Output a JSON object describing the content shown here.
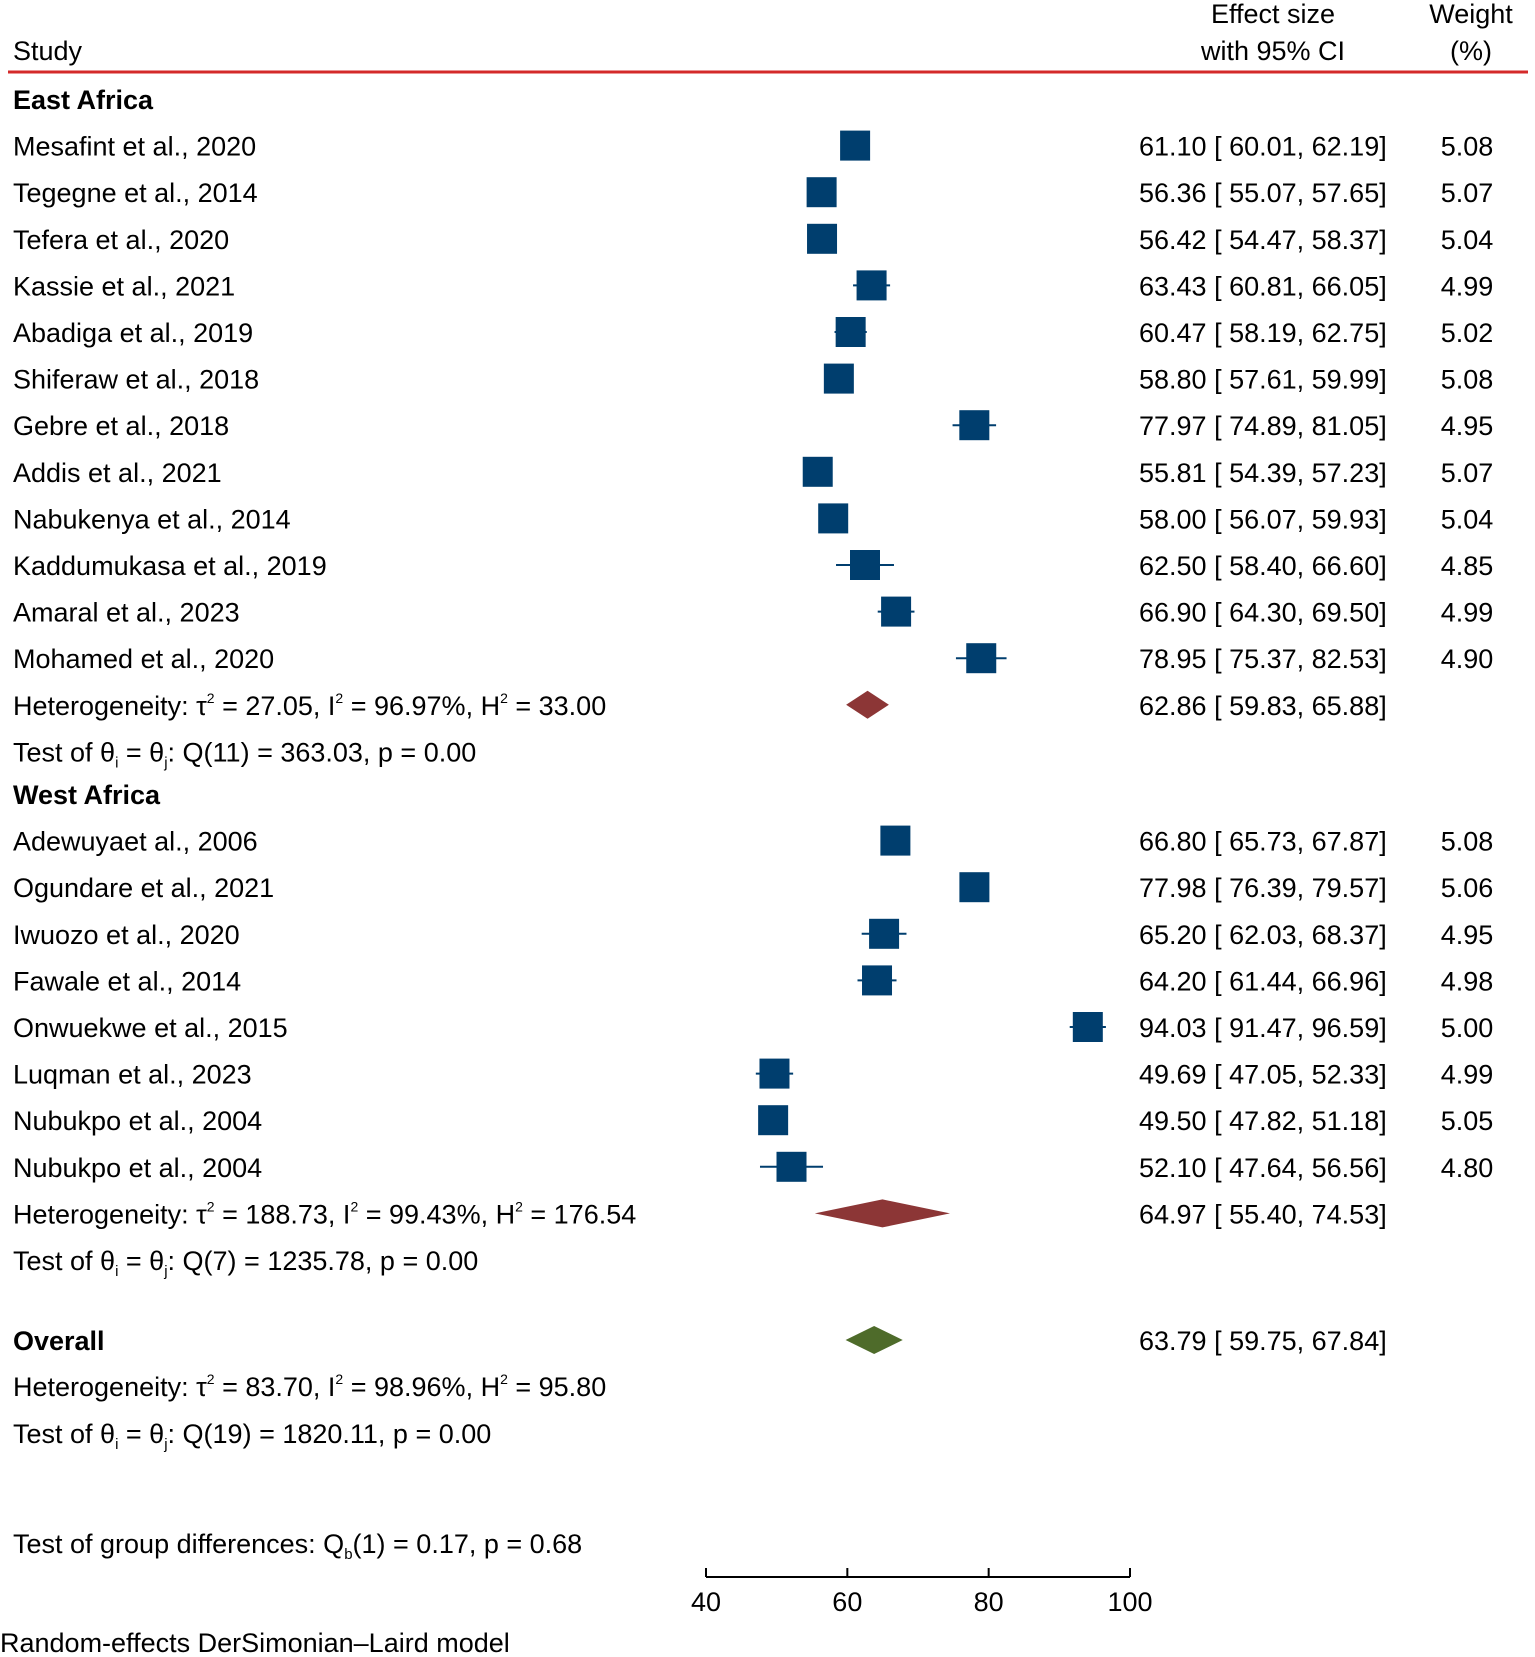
{
  "header": {
    "study": "Study",
    "effect_line1": "Effect size",
    "effect_line2": "with 95% CI",
    "weight_line1": "Weight",
    "weight_line2": "(%)"
  },
  "colors": {
    "header_rule": "#d42a2a",
    "study_marker": "#003e6e",
    "subgroup_diamond": "#8c3636",
    "overall_diamond": "#4e6b2a"
  },
  "chart_data": {
    "type": "forest",
    "xlim": [
      40,
      100
    ],
    "xticks": [
      40,
      60,
      80,
      100
    ],
    "groups": [
      {
        "name": "East Africa",
        "studies": [
          {
            "label": "Mesafint et al., 2020",
            "es": 61.1,
            "lo": 60.01,
            "hi": 62.19,
            "weight": "5.08",
            "text": "61.10 [ 60.01,  62.19]"
          },
          {
            "label": "Tegegne et al., 2014",
            "es": 56.36,
            "lo": 55.07,
            "hi": 57.65,
            "weight": "5.07",
            "text": "56.36 [ 55.07,  57.65]"
          },
          {
            "label": "Tefera et al., 2020",
            "es": 56.42,
            "lo": 54.47,
            "hi": 58.37,
            "weight": "5.04",
            "text": "56.42 [ 54.47,  58.37]"
          },
          {
            "label": "Kassie et al., 2021",
            "es": 63.43,
            "lo": 60.81,
            "hi": 66.05,
            "weight": "4.99",
            "text": "63.43 [ 60.81,  66.05]"
          },
          {
            "label": "Abadiga et al., 2019",
            "es": 60.47,
            "lo": 58.19,
            "hi": 62.75,
            "weight": "5.02",
            "text": "60.47 [ 58.19,  62.75]"
          },
          {
            "label": "Shiferaw et al., 2018",
            "es": 58.8,
            "lo": 57.61,
            "hi": 59.99,
            "weight": "5.08",
            "text": "58.80 [ 57.61,  59.99]"
          },
          {
            "label": "Gebre et al., 2018",
            "es": 77.97,
            "lo": 74.89,
            "hi": 81.05,
            "weight": "4.95",
            "text": "77.97 [ 74.89,  81.05]"
          },
          {
            "label": "Addis et al., 2021",
            "es": 55.81,
            "lo": 54.39,
            "hi": 57.23,
            "weight": "5.07",
            "text": "55.81 [ 54.39,  57.23]"
          },
          {
            "label": "Nabukenya et al., 2014",
            "es": 58.0,
            "lo": 56.07,
            "hi": 59.93,
            "weight": "5.04",
            "text": "58.00 [ 56.07,  59.93]"
          },
          {
            "label": "Kaddumukasa et al., 2019",
            "es": 62.5,
            "lo": 58.4,
            "hi": 66.6,
            "weight": "4.85",
            "text": "62.50 [ 58.40,  66.60]"
          },
          {
            "label": "Amaral et al., 2023",
            "es": 66.9,
            "lo": 64.3,
            "hi": 69.5,
            "weight": "4.99",
            "text": "66.90 [ 64.30,  69.50]"
          },
          {
            "label": "Mohamed et al., 2020",
            "es": 78.95,
            "lo": 75.37,
            "hi": 82.53,
            "weight": "4.90",
            "text": "78.95 [ 75.37,  82.53]"
          }
        ],
        "pooled": {
          "es": 62.86,
          "lo": 59.83,
          "hi": 65.88,
          "text": "62.86 [ 59.83,  65.88]"
        },
        "heterogeneity": {
          "prefix": "Heterogeneity: τ",
          "tau2": " = 27.05, I",
          "i2": " = 96.97%, H",
          "h2": " = 33.00"
        },
        "test": {
          "prefix": "Test of θ",
          "i": "i",
          "mid": " = θ",
          "j": "j",
          "rest": ": Q(11) = 363.03, p = 0.00"
        }
      },
      {
        "name": "West Africa",
        "studies": [
          {
            "label": "Adewuyaet al., 2006",
            "es": 66.8,
            "lo": 65.73,
            "hi": 67.87,
            "weight": "5.08",
            "text": "66.80 [ 65.73,  67.87]"
          },
          {
            "label": "Ogundare et al., 2021",
            "es": 77.98,
            "lo": 76.39,
            "hi": 79.57,
            "weight": "5.06",
            "text": "77.98 [ 76.39,  79.57]"
          },
          {
            "label": "Iwuozo et al., 2020",
            "es": 65.2,
            "lo": 62.03,
            "hi": 68.37,
            "weight": "4.95",
            "text": "65.20 [ 62.03,  68.37]"
          },
          {
            "label": "Fawale et al., 2014",
            "es": 64.2,
            "lo": 61.44,
            "hi": 66.96,
            "weight": "4.98",
            "text": "64.20 [ 61.44,  66.96]"
          },
          {
            "label": "Onwuekwe et al., 2015",
            "es": 94.03,
            "lo": 91.47,
            "hi": 96.59,
            "weight": "5.00",
            "text": "94.03 [ 91.47,  96.59]"
          },
          {
            "label": "Luqman et al., 2023",
            "es": 49.69,
            "lo": 47.05,
            "hi": 52.33,
            "weight": "4.99",
            "text": "49.69 [ 47.05,  52.33]"
          },
          {
            "label": "Nubukpo et al., 2004",
            "es": 49.5,
            "lo": 47.82,
            "hi": 51.18,
            "weight": "5.05",
            "text": "49.50 [ 47.82,  51.18]"
          },
          {
            "label": "Nubukpo et al., 2004",
            "es": 52.1,
            "lo": 47.64,
            "hi": 56.56,
            "weight": "4.80",
            "text": "52.10 [ 47.64,  56.56]"
          }
        ],
        "pooled": {
          "es": 64.97,
          "lo": 55.4,
          "hi": 74.53,
          "text": "64.97 [ 55.40,  74.53]"
        },
        "heterogeneity": {
          "prefix": "Heterogeneity: τ",
          "tau2": " = 188.73, I",
          "i2": " = 99.43%, H",
          "h2": " = 176.54"
        },
        "test": {
          "prefix": "Test of θ",
          "i": "i",
          "mid": " = θ",
          "j": "j",
          "rest": ": Q(7) = 1235.78, p = 0.00"
        }
      }
    ],
    "overall": {
      "label": "Overall",
      "es": 63.79,
      "lo": 59.75,
      "hi": 67.84,
      "text": "63.79 [ 59.75,  67.84]",
      "heterogeneity": {
        "prefix": "Heterogeneity: τ",
        "tau2": " = 83.70, I",
        "i2": " = 98.96%, H",
        "h2": " = 95.80"
      },
      "test": {
        "prefix": "Test of θ",
        "i": "i",
        "mid": " = θ",
        "j": "j",
        "rest": ": Q(19) = 1820.11, p = 0.00"
      }
    },
    "group_test": {
      "prefix": "Test of group differences: Q",
      "sub": "b",
      "rest": "(1) = 0.17, p = 0.68"
    },
    "sup2": "2",
    "model_note": "Random-effects DerSimonian–Laird model"
  }
}
